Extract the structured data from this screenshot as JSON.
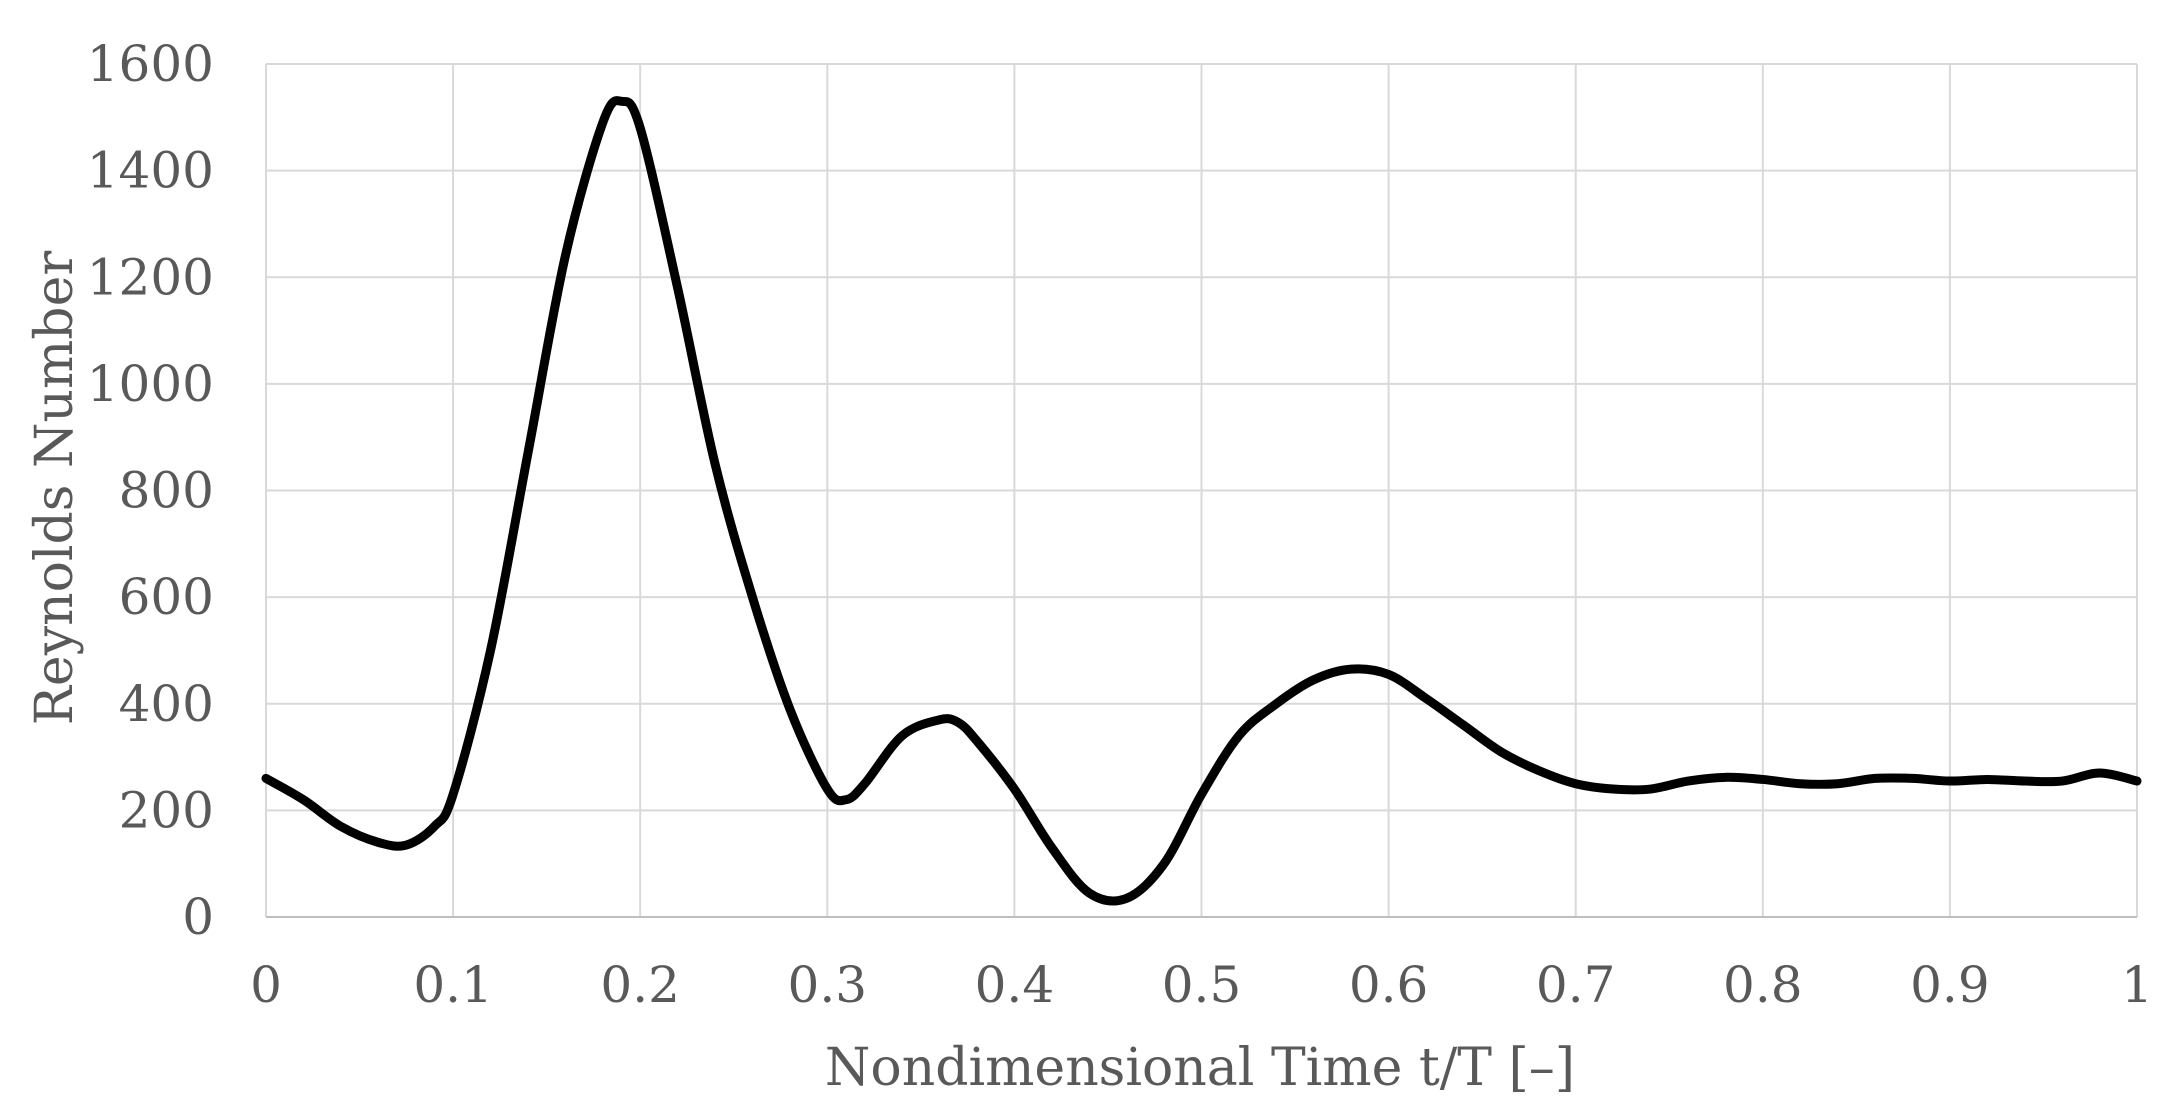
{
  "chart_data": {
    "type": "line",
    "title": "",
    "xlabel": "Nondimensional Time t/T [–]",
    "ylabel": "Reynolds Number",
    "xlim": [
      0,
      1
    ],
    "ylim": [
      0,
      1600
    ],
    "x_ticks": [
      0,
      0.1,
      0.2,
      0.3,
      0.4,
      0.5,
      0.6,
      0.7,
      0.8,
      0.9,
      1
    ],
    "x_tick_labels": [
      "0",
      "0.1",
      "0.2",
      "0.3",
      "0.4",
      "0.5",
      "0.6",
      "0.7",
      "0.8",
      "0.9",
      "1"
    ],
    "y_ticks": [
      0,
      200,
      400,
      600,
      800,
      1000,
      1200,
      1400,
      1600
    ],
    "y_tick_labels": [
      "0",
      "200",
      "400",
      "600",
      "800",
      "1000",
      "1200",
      "1400",
      "1600"
    ],
    "grid": true,
    "legend": "none",
    "series": [
      {
        "color": "#000000",
        "x": [
          0,
          0.02,
          0.04,
          0.06,
          0.075,
          0.09,
          0.1,
          0.12,
          0.14,
          0.16,
          0.18,
          0.19,
          0.2,
          0.22,
          0.24,
          0.26,
          0.28,
          0.3,
          0.31,
          0.32,
          0.34,
          0.36,
          0.37,
          0.38,
          0.4,
          0.42,
          0.44,
          0.46,
          0.48,
          0.5,
          0.52,
          0.54,
          0.56,
          0.58,
          0.6,
          0.62,
          0.64,
          0.66,
          0.68,
          0.7,
          0.72,
          0.74,
          0.76,
          0.78,
          0.8,
          0.82,
          0.84,
          0.86,
          0.88,
          0.9,
          0.92,
          0.94,
          0.96,
          0.98,
          1
        ],
        "y": [
          260,
          220,
          170,
          140,
          135,
          170,
          230,
          500,
          870,
          1240,
          1490,
          1530,
          1480,
          1180,
          850,
          600,
          390,
          240,
          220,
          250,
          340,
          370,
          365,
          330,
          240,
          130,
          45,
          35,
          100,
          230,
          340,
          400,
          445,
          465,
          455,
          410,
          360,
          310,
          275,
          250,
          240,
          240,
          255,
          262,
          258,
          250,
          250,
          260,
          260,
          255,
          258,
          255,
          255,
          270,
          255
        ]
      }
    ]
  }
}
